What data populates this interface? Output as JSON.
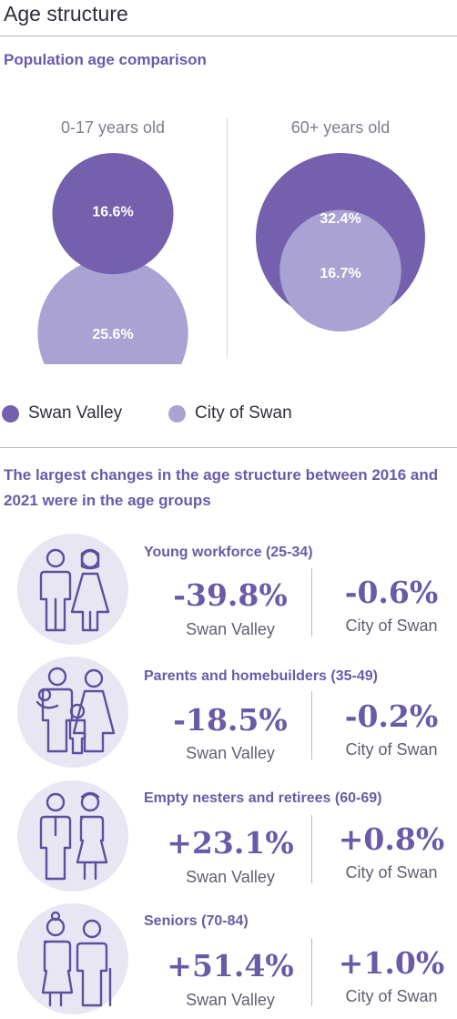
{
  "page": {
    "title": "Age structure"
  },
  "comparison": {
    "subtitle": "Population age comparison",
    "legend": [
      {
        "label": "Swan Valley",
        "color": "#7460ac"
      },
      {
        "label": "City of Swan",
        "color": "#a9a2d2"
      }
    ]
  },
  "chart_data": {
    "type": "bubble",
    "title": "Population age comparison",
    "series": [
      {
        "name": "Swan Valley",
        "color": "#7460ac"
      },
      {
        "name": "City of Swan",
        "color": "#a9a2d2"
      }
    ],
    "groups": [
      {
        "label": "0-17 years old",
        "values": [
          16.6,
          25.6
        ],
        "value_labels": [
          "16.6%",
          "25.6%"
        ]
      },
      {
        "label": "60+ years old",
        "values": [
          32.4,
          16.7
        ],
        "value_labels": [
          "32.4%",
          "16.7%"
        ]
      }
    ],
    "unit": "%"
  },
  "changes": {
    "heading": "The largest changes in the age structure between 2016 and 2021 were in the age groups",
    "rows": [
      {
        "title": "Young workforce (25-34)",
        "icon": "young-couple-icon",
        "left_value": "-39.8%",
        "left_caption": "Swan Valley",
        "right_value": "-0.6%",
        "right_caption": "City of Swan"
      },
      {
        "title": "Parents and homebuilders (35-49)",
        "icon": "family-icon",
        "left_value": "-18.5%",
        "left_caption": "Swan Valley",
        "right_value": "-0.2%",
        "right_caption": "City of Swan"
      },
      {
        "title": "Empty nesters and retirees (60-69)",
        "icon": "older-couple-icon",
        "left_value": "+23.1%",
        "left_caption": "Swan Valley",
        "right_value": "+0.8%",
        "right_caption": "City of Swan"
      },
      {
        "title": "Seniors (70-84)",
        "icon": "senior-couple-icon",
        "left_value": "+51.4%",
        "left_caption": "Swan Valley",
        "right_value": "+1.0%",
        "right_caption": "City of Swan"
      }
    ]
  }
}
